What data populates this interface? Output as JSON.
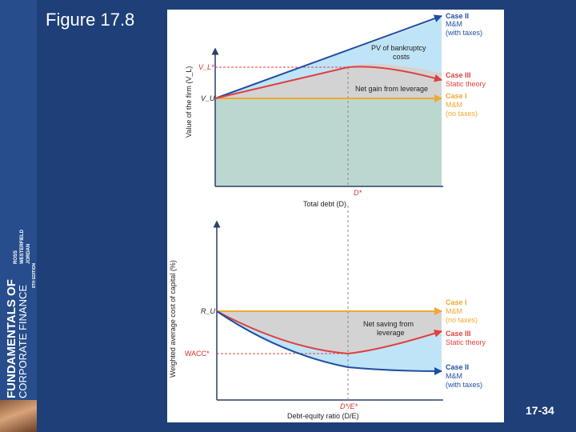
{
  "slide": {
    "figure_title": "Figure 17.8",
    "slide_number": "17-34"
  },
  "sidebar": {
    "line1": "FUNDAMENTALS OF",
    "line2": "CORPORATE FINANCE",
    "line3": "ROSS",
    "line4": "WESTERFIELD",
    "line5": "JORDAN",
    "edition": "8TH EDITION"
  },
  "colors": {
    "slide_bg": "#1e3f78",
    "case2": "#1f4fa3",
    "case3": "#e04040",
    "case1": "#f0a830",
    "pv_fill": "#bfe4f7",
    "gain_fill": "#d3d3d3",
    "base_fill": "#bcd7d0"
  },
  "chart_data": [
    {
      "type": "line",
      "title": "Value of the firm",
      "xlabel": "Total debt (D)",
      "ylabel": "Value of the firm (V_L)",
      "x_marker": "D*",
      "y_ticks": [
        "V_L*",
        "V_U"
      ],
      "series": [
        {
          "name": "Case II",
          "detail1": "M&M",
          "detail2": "(with taxes)",
          "shape": "rising straight line from V_U"
        },
        {
          "name": "Case III",
          "detail1": "Static theory",
          "shape": "rises to maximum V_L* at D*, then declines"
        },
        {
          "name": "Case I",
          "detail1": "M&M",
          "detail2": "(no taxes)",
          "shape": "flat at V_U"
        }
      ],
      "annotations": [
        {
          "line1": "PV of bankruptcy",
          "line2": "costs"
        },
        {
          "line1": "Net gain from leverage"
        }
      ]
    },
    {
      "type": "line",
      "title": "Weighted average cost of capital",
      "xlabel": "Debt-equity ratio (D/E)",
      "ylabel": "Weighted average cost of capital (%)",
      "x_marker": "D*/E*",
      "y_ticks": [
        "R_U",
        "WACC*"
      ],
      "series": [
        {
          "name": "Case I",
          "detail1": "M&M",
          "detail2": "(no taxes)",
          "shape": "flat at R_U"
        },
        {
          "name": "Case III",
          "detail1": "Static theory",
          "shape": "falls to minimum WACC* at D*/E*, then rises"
        },
        {
          "name": "Case II",
          "detail1": "M&M",
          "detail2": "(with taxes)",
          "shape": "declining curve"
        }
      ],
      "annotations": [
        {
          "line1": "Net saving from",
          "line2": "leverage"
        }
      ]
    }
  ]
}
